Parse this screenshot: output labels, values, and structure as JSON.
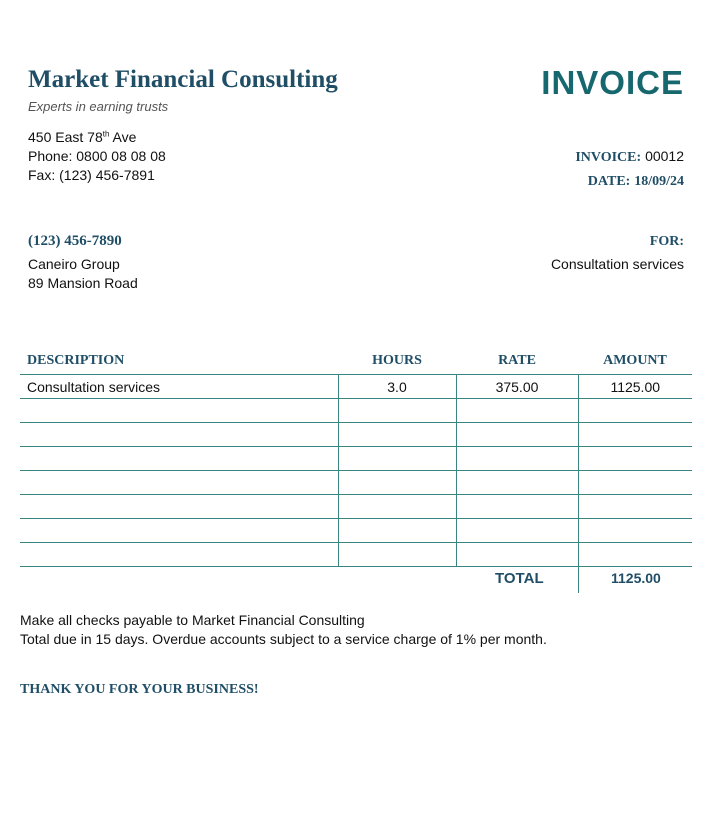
{
  "header": {
    "company_name": "Market Financial Consulting",
    "tagline": "Experts in earning trusts",
    "doc_title": "INVOICE"
  },
  "sender": {
    "address_line_prefix": "450 East 78",
    "address_line_sup": "th",
    "address_line_suffix": " Ave",
    "phone": "Phone: 0800 08 08 08",
    "fax": "Fax: (123) 456-7891"
  },
  "invoice_meta": {
    "invoice_label": "INVOICE:",
    "invoice_number": "00012",
    "date_label": "DATE:",
    "date_value": "18/09/24"
  },
  "client": {
    "phone": "(123) 456-7890",
    "name": "Caneiro Group",
    "address": "89 Mansion Road",
    "for_label": "FOR:",
    "for_value": "Consultation services"
  },
  "table": {
    "headers": [
      "DESCRIPTION",
      "HOURS",
      "RATE",
      "AMOUNT"
    ],
    "rows": [
      [
        "Consultation services",
        "3.0",
        "375.00",
        "1125.00"
      ],
      [
        "",
        "",
        "",
        ""
      ],
      [
        "",
        "",
        "",
        ""
      ],
      [
        "",
        "",
        "",
        ""
      ],
      [
        "",
        "",
        "",
        ""
      ],
      [
        "",
        "",
        "",
        ""
      ],
      [
        "",
        "",
        "",
        ""
      ],
      [
        "",
        "",
        "",
        ""
      ]
    ]
  },
  "totals": {
    "total_label": "TOTAL",
    "total_value": "1125.00"
  },
  "footer": {
    "note_1": "Make all checks payable to Market Financial Consulting",
    "note_2": "Total due in 15 days. Overdue accounts subject to a service charge of 1% per month.",
    "thanks": "THANK YOU FOR YOUR BUSINESS!"
  },
  "colors": {
    "navy": "#1f4e66",
    "teal": "#17676e",
    "rule": "#3a8484"
  }
}
